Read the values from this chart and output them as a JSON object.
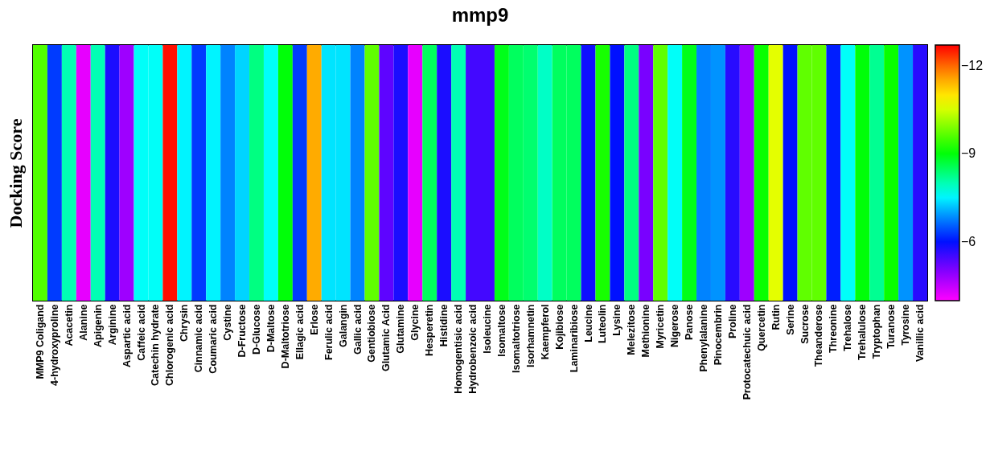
{
  "chart_data": {
    "type": "heatmap",
    "title": "mmp9",
    "ylabel": "Docking Score",
    "categories": [
      "MMP9 Coligand",
      "4-hydroxyproline",
      "Acacetin",
      "Alanine",
      "Apigenin",
      "Arginine",
      "Aspartic acid",
      "Caffeic acid",
      "Catechin hydrate",
      "Chlorogenic acid",
      "Chrysin",
      "Cinnamic acid",
      "Coumaric acid",
      "Cystine",
      "D-Fructose",
      "D-Glucose",
      "D-Maltose",
      "D-Maltotriose",
      "Ellagic acid",
      "Erlose",
      "Ferulic acid",
      "Galangin",
      "Gallic acid",
      "Gentiobiose",
      "Glutamic Acid",
      "Glutamine",
      "Glycine",
      "Hesperetin",
      "Histidine",
      "Homogentisic acid",
      "Hydrobenzoic acid",
      "Isoleucine",
      "Isomaltose",
      "Isomaltotriose",
      "Isorhamnetin",
      "Kaempferol",
      "Kojibiose",
      "Laminaribiose",
      "Leucine",
      "Luteolin",
      "Lysine",
      "Melezitose",
      "Methionine",
      "Myricetin",
      "Nigerose",
      "Panose",
      "Phenylalanine",
      "Pinocembrin",
      "Proline",
      "Protocatechuic acid",
      "Quercetin",
      "Rutin",
      "Serine",
      "Sucrose",
      "Theanderose",
      "Threonine",
      "Trehalose",
      "Trehalulose",
      "Tryptophan",
      "Turanose",
      "Tyrosine",
      "Vanillic acid"
    ],
    "y_categories": [
      null
    ],
    "cells": [
      [
        -9.6,
        -6.3,
        -8.0,
        -4.2,
        -8.0,
        -5.8,
        -4.8,
        -7.6,
        -7.6,
        -12.6,
        -7.5,
        -6.3,
        -7.5,
        -6.8,
        -7.3,
        -8.3,
        -7.6,
        -9.0,
        -6.3,
        -11.5,
        -7.4,
        -7.4,
        -6.8,
        -9.7,
        -5.3,
        -5.8,
        -4.2,
        -8.5,
        -5.8,
        -8.0,
        -5.5,
        -5.5,
        -8.9,
        -8.5,
        -8.4,
        -7.9,
        -8.5,
        -8.5,
        -5.9,
        -9.2,
        -6.0,
        -8.3,
        -5.1,
        -9.7,
        -7.6,
        -8.9,
        -6.8,
        -6.9,
        -5.7,
        -4.8,
        -9.1,
        -10.6,
        -6.0,
        -9.7,
        -9.7,
        -6.1,
        -7.6,
        -9.0,
        -8.2,
        -9.1,
        -6.9,
        -5.7
      ]
    ],
    "clim": [
      -4,
      -12.7
    ],
    "cticks": [
      -6,
      -9,
      -12
    ]
  }
}
